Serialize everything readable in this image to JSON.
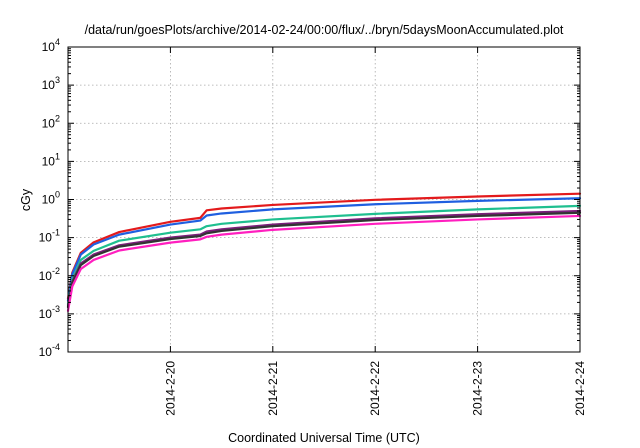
{
  "chart_data": {
    "type": "line",
    "title": "/data/run/goesPlots/archive/2014-02-24/00:00/flux/../bryn/5daysMoonAccumulated.plot",
    "xlabel": "Coordinated Universal Time (UTC)",
    "ylabel": "cGy",
    "x_type": "datetime",
    "x_range": [
      "2014-02-19T00:00",
      "2014-02-24T00:00"
    ],
    "x_tick_labels": [
      "2014-2-20",
      "2014-2-21",
      "2014-2-22",
      "2014-2-23",
      "2014-2-24"
    ],
    "x_tick_values": [
      "2014-02-20T00:00",
      "2014-02-21T00:00",
      "2014-02-22T00:00",
      "2014-02-23T00:00",
      "2014-02-24T00:00"
    ],
    "y_scale": "log",
    "ylim": [
      0.0001,
      10000
    ],
    "y_ticks": [
      {
        "value": 0.0001,
        "base": "10",
        "exp": "-4"
      },
      {
        "value": 0.001,
        "base": "10",
        "exp": "-3"
      },
      {
        "value": 0.01,
        "base": "10",
        "exp": "-2"
      },
      {
        "value": 0.1,
        "base": "10",
        "exp": "-1"
      },
      {
        "value": 1,
        "base": "10",
        "exp": "0"
      },
      {
        "value": 10,
        "base": "10",
        "exp": "1"
      },
      {
        "value": 100,
        "base": "10",
        "exp": "2"
      },
      {
        "value": 1000,
        "base": "10",
        "exp": "3"
      },
      {
        "value": 10000,
        "base": "10",
        "exp": "4"
      }
    ],
    "grid": true,
    "legend": "none",
    "series": [
      {
        "color": "#e31a1c",
        "x": [
          "2014-02-19T00:00",
          "2014-02-19T01:00",
          "2014-02-19T03:00",
          "2014-02-19T06:00",
          "2014-02-19T12:00",
          "2014-02-20T00:00",
          "2014-02-20T07:00",
          "2014-02-20T08:30",
          "2014-02-20T12:00",
          "2014-02-21T00:00",
          "2014-02-22T00:00",
          "2014-02-23T00:00",
          "2014-02-24T00:00"
        ],
        "y": [
          0.0025,
          0.012,
          0.04,
          0.075,
          0.14,
          0.26,
          0.33,
          0.52,
          0.58,
          0.72,
          0.98,
          1.2,
          1.42
        ]
      },
      {
        "color": "#1f5fe0",
        "x": [
          "2014-02-19T00:00",
          "2014-02-19T01:00",
          "2014-02-19T03:00",
          "2014-02-19T06:00",
          "2014-02-19T12:00",
          "2014-02-20T00:00",
          "2014-02-20T07:00",
          "2014-02-20T08:30",
          "2014-02-20T12:00",
          "2014-02-21T00:00",
          "2014-02-22T00:00",
          "2014-02-23T00:00",
          "2014-02-24T00:00"
        ],
        "y": [
          0.0022,
          0.011,
          0.036,
          0.066,
          0.12,
          0.22,
          0.28,
          0.38,
          0.43,
          0.55,
          0.75,
          0.92,
          1.08
        ]
      },
      {
        "color": "#1fbf8f",
        "x": [
          "2014-02-19T00:00",
          "2014-02-19T01:00",
          "2014-02-19T03:00",
          "2014-02-19T06:00",
          "2014-02-19T12:00",
          "2014-02-20T00:00",
          "2014-02-20T07:00",
          "2014-02-20T08:30",
          "2014-02-20T12:00",
          "2014-02-21T00:00",
          "2014-02-22T00:00",
          "2014-02-23T00:00",
          "2014-02-24T00:00"
        ],
        "y": [
          0.0018,
          0.008,
          0.026,
          0.045,
          0.083,
          0.135,
          0.165,
          0.2,
          0.23,
          0.3,
          0.42,
          0.55,
          0.68
        ]
      },
      {
        "color": "#7a1f7a",
        "x": [
          "2014-02-19T00:00",
          "2014-02-19T01:00",
          "2014-02-19T03:00",
          "2014-02-19T06:00",
          "2014-02-19T12:00",
          "2014-02-20T00:00",
          "2014-02-20T07:00",
          "2014-02-20T08:30",
          "2014-02-20T12:00",
          "2014-02-21T00:00",
          "2014-02-22T00:00",
          "2014-02-23T00:00",
          "2014-02-24T00:00"
        ],
        "y": [
          0.0016,
          0.007,
          0.021,
          0.036,
          0.063,
          0.1,
          0.12,
          0.145,
          0.165,
          0.22,
          0.32,
          0.41,
          0.5
        ]
      },
      {
        "color": "#333333",
        "x": [
          "2014-02-19T00:00",
          "2014-02-19T01:00",
          "2014-02-19T03:00",
          "2014-02-19T06:00",
          "2014-02-19T12:00",
          "2014-02-20T00:00",
          "2014-02-20T07:00",
          "2014-02-20T08:30",
          "2014-02-20T12:00",
          "2014-02-21T00:00",
          "2014-02-22T00:00",
          "2014-02-23T00:00",
          "2014-02-24T00:00"
        ],
        "y": [
          0.0015,
          0.0065,
          0.019,
          0.033,
          0.058,
          0.092,
          0.11,
          0.13,
          0.15,
          0.2,
          0.29,
          0.37,
          0.45
        ]
      },
      {
        "color": "#ff1fbf",
        "x": [
          "2014-02-19T00:00",
          "2014-02-19T01:00",
          "2014-02-19T03:00",
          "2014-02-19T06:00",
          "2014-02-19T12:00",
          "2014-02-20T00:00",
          "2014-02-20T07:00",
          "2014-02-20T08:30",
          "2014-02-20T12:00",
          "2014-02-21T00:00",
          "2014-02-22T00:00",
          "2014-02-23T00:00",
          "2014-02-24T00:00"
        ],
        "y": [
          0.0012,
          0.0052,
          0.015,
          0.026,
          0.046,
          0.074,
          0.09,
          0.105,
          0.12,
          0.16,
          0.23,
          0.3,
          0.37
        ]
      }
    ]
  }
}
